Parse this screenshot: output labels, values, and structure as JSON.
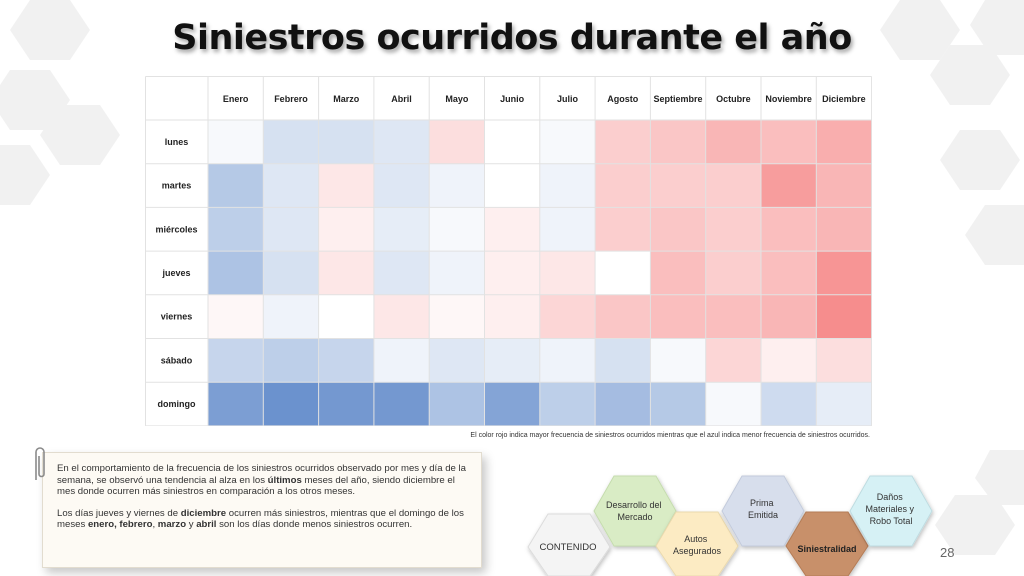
{
  "title": "Siniestros ocurridos durante el año",
  "footnote": "El color rojo indica mayor frecuencia de siniestros ocurridos mientras que el azul indica menor frecuencia de siniestros ocurridos.",
  "chart_data": {
    "type": "heatmap",
    "columns": [
      "Enero",
      "Febrero",
      "Marzo",
      "Abril",
      "Mayo",
      "Junio",
      "Julio",
      "Agosto",
      "Septiembre",
      "Octubre",
      "Noviembre",
      "Diciembre"
    ],
    "rows": [
      "lunes",
      "martes",
      "miércoles",
      "jueves",
      "viernes",
      "sábado",
      "domingo"
    ],
    "color_scale": {
      "low": "#5b86c8",
      "mid": "#ffffff",
      "high": "#f25c5c"
    },
    "values": [
      [
        -0.05,
        -0.25,
        -0.25,
        -0.2,
        0.2,
        0.0,
        -0.05,
        0.3,
        0.35,
        0.45,
        0.4,
        0.5
      ],
      [
        -0.45,
        -0.2,
        0.15,
        -0.2,
        -0.1,
        0.0,
        -0.1,
        0.3,
        0.3,
        0.3,
        0.6,
        0.45
      ],
      [
        -0.4,
        -0.2,
        0.1,
        -0.15,
        -0.05,
        0.1,
        -0.1,
        0.3,
        0.35,
        0.3,
        0.4,
        0.45
      ],
      [
        -0.5,
        -0.25,
        0.15,
        -0.2,
        -0.1,
        0.1,
        0.15,
        0.0,
        0.4,
        0.3,
        0.4,
        0.65
      ],
      [
        0.05,
        -0.1,
        0.0,
        0.15,
        0.05,
        0.1,
        0.25,
        0.35,
        0.4,
        0.4,
        0.45,
        0.7
      ],
      [
        -0.35,
        -0.4,
        -0.35,
        -0.1,
        -0.2,
        -0.15,
        -0.1,
        -0.25,
        -0.05,
        0.25,
        0.1,
        0.2
      ],
      [
        -0.8,
        -0.9,
        -0.85,
        -0.85,
        -0.5,
        -0.75,
        -0.4,
        -0.55,
        -0.45,
        -0.05,
        -0.3,
        -0.15
      ]
    ]
  },
  "note": {
    "p1": [
      {
        "t": "En el comportamiento de la frecuencia de los siniestros ocurridos observado por mes y día de la semana, se observó una tendencia al alza en los "
      },
      {
        "t": "últimos",
        "b": true
      },
      {
        "t": " meses del año, siendo diciembre el mes donde ocurren más siniestros en comparación a los otros meses."
      }
    ],
    "p2": [
      {
        "t": "Los días jueves y viernes de "
      },
      {
        "t": "diciembre",
        "b": true
      },
      {
        "t": " ocurren más siniestros, mientras que el domingo de los meses "
      },
      {
        "t": "enero, febrero",
        "b": true
      },
      {
        "t": ", "
      },
      {
        "t": "marzo",
        "b": true
      },
      {
        "t": " y "
      },
      {
        "t": "abril",
        "b": true
      },
      {
        "t": " son los días donde menos siniestros ocurren."
      }
    ]
  },
  "nav": {
    "contenido": "CONTENIDO",
    "desarrollo": [
      "Desarrollo del",
      "Mercado"
    ],
    "autos": [
      "Autos",
      "Asegurados"
    ],
    "prima": [
      "Prima",
      "Emitida"
    ],
    "siniestralidad": "Siniestralidad",
    "danos": [
      "Daños",
      "Materiales y",
      "Robo Total"
    ]
  },
  "page_number": "28"
}
